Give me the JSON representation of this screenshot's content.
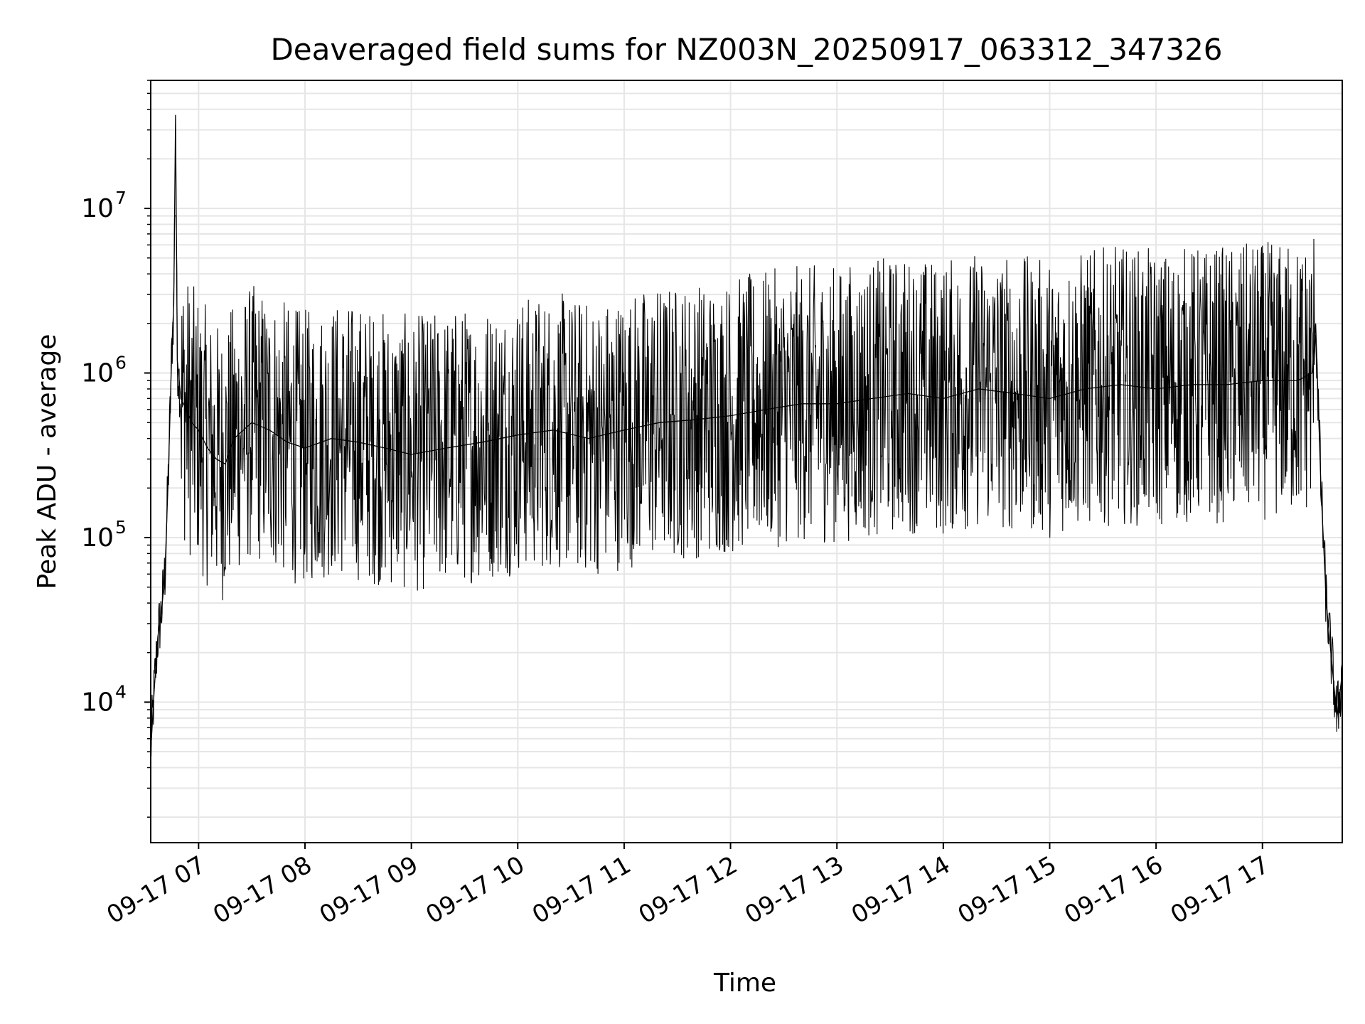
{
  "chart_data": {
    "type": "line",
    "title": "Deaveraged field sums for NZ003N_20250917_063312_347326",
    "xlabel": "Time",
    "ylabel": "Peak ADU - average",
    "yscale": "log",
    "xlim": [
      "2025-09-17 06:33",
      "2025-09-17 17:45"
    ],
    "ylim": [
      1400,
      60000000
    ],
    "x_ticks": [
      {
        "value": "2025-09-17 07:00",
        "label": "09-17 07"
      },
      {
        "value": "2025-09-17 08:00",
        "label": "09-17 08"
      },
      {
        "value": "2025-09-17 09:00",
        "label": "09-17 09"
      },
      {
        "value": "2025-09-17 10:00",
        "label": "09-17 10"
      },
      {
        "value": "2025-09-17 11:00",
        "label": "09-17 11"
      },
      {
        "value": "2025-09-17 12:00",
        "label": "09-17 12"
      },
      {
        "value": "2025-09-17 13:00",
        "label": "09-17 13"
      },
      {
        "value": "2025-09-17 14:00",
        "label": "09-17 14"
      },
      {
        "value": "2025-09-17 15:00",
        "label": "09-17 15"
      },
      {
        "value": "2025-09-17 16:00",
        "label": "09-17 16"
      },
      {
        "value": "2025-09-17 17:00",
        "label": "09-17 17"
      }
    ],
    "y_ticks": [
      {
        "value": 10000,
        "base": "10",
        "exp": "4"
      },
      {
        "value": 100000,
        "base": "10",
        "exp": "5"
      },
      {
        "value": 1000000,
        "base": "10",
        "exp": "6"
      },
      {
        "value": 10000000,
        "base": "10",
        "exp": "7"
      }
    ],
    "grid": true,
    "series": [
      {
        "color": "#000000",
        "x": [
          "2025-09-17 06:33",
          "2025-09-17 06:35",
          "2025-09-17 06:37",
          "2025-09-17 06:39",
          "2025-09-17 06:41",
          "2025-09-17 06:43",
          "2025-09-17 06:45",
          "2025-09-17 06:46",
          "2025-09-17 06:47",
          "2025-09-17 06:48",
          "2025-09-17 06:50",
          "2025-09-17 06:53",
          "2025-09-17 06:56",
          "2025-09-17 07:00",
          "2025-09-17 07:05",
          "2025-09-17 07:10",
          "2025-09-17 07:15",
          "2025-09-17 07:20",
          "2025-09-17 07:30",
          "2025-09-17 07:40",
          "2025-09-17 07:50",
          "2025-09-17 08:00",
          "2025-09-17 08:15",
          "2025-09-17 08:30",
          "2025-09-17 08:45",
          "2025-09-17 09:00",
          "2025-09-17 09:20",
          "2025-09-17 09:40",
          "2025-09-17 10:00",
          "2025-09-17 10:20",
          "2025-09-17 10:40",
          "2025-09-17 11:00",
          "2025-09-17 11:20",
          "2025-09-17 11:40",
          "2025-09-17 12:00",
          "2025-09-17 12:20",
          "2025-09-17 12:40",
          "2025-09-17 13:00",
          "2025-09-17 13:20",
          "2025-09-17 13:40",
          "2025-09-17 14:00",
          "2025-09-17 14:20",
          "2025-09-17 14:40",
          "2025-09-17 15:00",
          "2025-09-17 15:20",
          "2025-09-17 15:40",
          "2025-09-17 16:00",
          "2025-09-17 16:20",
          "2025-09-17 16:40",
          "2025-09-17 17:00",
          "2025-09-17 17:20",
          "2025-09-17 17:28",
          "2025-09-17 17:30",
          "2025-09-17 17:33",
          "2025-09-17 17:36",
          "2025-09-17 17:39",
          "2025-09-17 17:42",
          "2025-09-17 17:45"
        ],
        "y": [
          5000,
          12000,
          25000,
          35000,
          60000,
          250000,
          1500000,
          2600000,
          37000000,
          1200000,
          700000,
          600000,
          500000,
          450000,
          350000,
          300000,
          280000,
          400000,
          500000,
          450000,
          380000,
          350000,
          400000,
          380000,
          350000,
          320000,
          350000,
          380000,
          420000,
          450000,
          400000,
          450000,
          500000,
          520000,
          550000,
          600000,
          650000,
          650000,
          700000,
          750000,
          700000,
          800000,
          750000,
          700000,
          800000,
          850000,
          800000,
          850000,
          850000,
          900000,
          900000,
          1000000,
          2000000,
          200000,
          40000,
          18000,
          8000,
          15000
        ]
      }
    ]
  }
}
